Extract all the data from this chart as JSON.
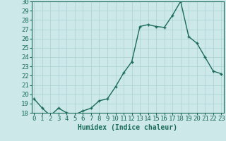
{
  "x": [
    0,
    1,
    2,
    3,
    4,
    5,
    6,
    7,
    8,
    9,
    10,
    11,
    12,
    13,
    14,
    15,
    16,
    17,
    18,
    19,
    20,
    21,
    22,
    23
  ],
  "y": [
    19.5,
    18.5,
    17.7,
    18.5,
    18.0,
    17.8,
    18.2,
    18.5,
    19.3,
    19.5,
    20.8,
    22.3,
    23.5,
    27.3,
    27.5,
    27.3,
    27.2,
    28.5,
    30.0,
    26.2,
    25.5,
    24.0,
    22.5,
    22.2
  ],
  "xlabel": "Humidex (Indice chaleur)",
  "line_color": "#1a6b5a",
  "marker_color": "#1a6b5a",
  "bg_color": "#cce8e8",
  "grid_color": "#aad0d0",
  "ylim_min": 18,
  "ylim_max": 30,
  "xlim_min": -0.3,
  "xlim_max": 23.3,
  "yticks": [
    18,
    19,
    20,
    21,
    22,
    23,
    24,
    25,
    26,
    27,
    28,
    29,
    30
  ],
  "xticks": [
    0,
    1,
    2,
    3,
    4,
    5,
    6,
    7,
    8,
    9,
    10,
    11,
    12,
    13,
    14,
    15,
    16,
    17,
    18,
    19,
    20,
    21,
    22,
    23
  ],
  "xlabel_fontsize": 7,
  "tick_fontsize": 6.5,
  "figsize": [
    3.2,
    2.0
  ],
  "dpi": 100
}
